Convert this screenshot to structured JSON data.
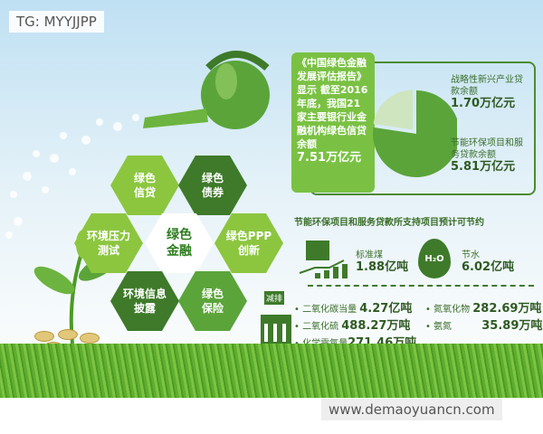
{
  "watermark_top": "TG: MYYJJPP",
  "watermark_bottom": "www.demaoyuancn.com",
  "hexagons": {
    "center": "绿色金融",
    "credit": "绿色信贷",
    "bonds": "绿色债券",
    "ppp": "绿色PPP创新",
    "insurance": "绿色保险",
    "disclosure": "环境信息披露",
    "stress": "环境压力测试"
  },
  "summary": {
    "text": "《中国绿色金融发展评估报告》显示 截至2016年底，我国21家主要银行业金融机构绿色信贷余额",
    "total": "7.51万亿元"
  },
  "pie": {
    "slices": [
      {
        "label": "战略性新兴产业贷款余额",
        "value": "1.70万亿元",
        "amount": 1.7,
        "color": "#cfe5bf"
      },
      {
        "label": "节能环保项目和服务贷款余额",
        "value": "5.81万亿元",
        "amount": 5.81,
        "color": "#5ba43a"
      }
    ]
  },
  "savings": {
    "title": "节能环保项目和服务贷款所支持项目预计可节约",
    "coal": {
      "label": "标准煤",
      "value": "1.88亿吨"
    },
    "water": {
      "label": "节水",
      "value": "6.02亿吨",
      "icon_text": "H₂O"
    },
    "reduce_label": "减排",
    "items": [
      {
        "label": "二氧化碳当量",
        "value": "4.27亿吨"
      },
      {
        "label": "氮氧化物",
        "value": "282.69万吨"
      },
      {
        "label": "二氧化硫",
        "value": "488.27万吨"
      },
      {
        "label": "氨氮",
        "value": "35.89万吨"
      },
      {
        "label": "化学需氧量",
        "value": "271.46万吨"
      }
    ]
  }
}
